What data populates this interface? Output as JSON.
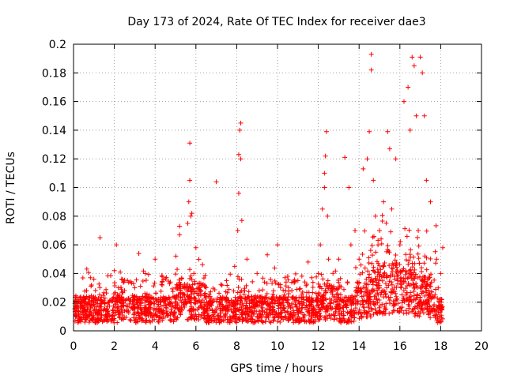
{
  "chart_data": {
    "type": "scatter",
    "title": "Day 173 of 2024, Rate Of TEC Index for receiver dae3",
    "xlabel": "GPS time / hours",
    "ylabel": "ROTI / TECUs",
    "xlim": [
      0,
      20
    ],
    "ylim": [
      0,
      0.2
    ],
    "xticks": [
      "0",
      "2",
      "4",
      "6",
      "8",
      "10",
      "12",
      "14",
      "16",
      "18",
      "20"
    ],
    "yticks": [
      "0",
      "0.02",
      "0.04",
      "0.06",
      "0.08",
      "0.1",
      "0.12",
      "0.14",
      "0.16",
      "0.18",
      "0.2"
    ],
    "grid": true,
    "marker": "plus",
    "color": "#ff0000",
    "series": [
      {
        "x": [
          0.1,
          0.5,
          1.0,
          1.3,
          1.5,
          2.0,
          2.1,
          2.2,
          2.5,
          3.0,
          3.2,
          3.5,
          4.0,
          4.5,
          5.0,
          5.2,
          5.2,
          5.5,
          5.6,
          5.65,
          5.7,
          5.7,
          5.75,
          5.8,
          5.9,
          6.0,
          6.5,
          7.0,
          7.5,
          7.9,
          8.05,
          8.1,
          8.1,
          8.15,
          8.2,
          8.2,
          8.25,
          8.5,
          9.0,
          9.5,
          10.0,
          10.5,
          11.0,
          11.5,
          12.0,
          12.1,
          12.2,
          12.3,
          12.3,
          12.35,
          12.4,
          12.45,
          12.5,
          13.0,
          13.3,
          13.5,
          13.6,
          13.8,
          14.0,
          14.2,
          14.4,
          14.5,
          14.6,
          14.6,
          14.7,
          14.8,
          15.0,
          15.2,
          15.4,
          15.5,
          15.6,
          15.8,
          16.0,
          16.2,
          16.4,
          16.5,
          16.6,
          16.7,
          16.8,
          16.9,
          17.0,
          17.1,
          17.2,
          17.3,
          17.5,
          17.8,
          18.0,
          18.1
        ],
        "y": [
          0.012,
          0.018,
          0.014,
          0.065,
          0.02,
          0.042,
          0.06,
          0.03,
          0.028,
          0.03,
          0.054,
          0.026,
          0.05,
          0.022,
          0.03,
          0.067,
          0.073,
          0.03,
          0.075,
          0.09,
          0.131,
          0.105,
          0.08,
          0.082,
          0.04,
          0.058,
          0.03,
          0.104,
          0.035,
          0.045,
          0.07,
          0.096,
          0.123,
          0.14,
          0.145,
          0.12,
          0.077,
          0.05,
          0.04,
          0.053,
          0.06,
          0.038,
          0.035,
          0.048,
          0.04,
          0.06,
          0.085,
          0.1,
          0.11,
          0.122,
          0.139,
          0.08,
          0.05,
          0.05,
          0.121,
          0.1,
          0.06,
          0.07,
          0.05,
          0.113,
          0.12,
          0.139,
          0.182,
          0.193,
          0.105,
          0.08,
          0.07,
          0.09,
          0.139,
          0.127,
          0.085,
          0.12,
          0.06,
          0.16,
          0.17,
          0.14,
          0.191,
          0.185,
          0.15,
          0.07,
          0.191,
          0.18,
          0.15,
          0.105,
          0.09,
          0.05,
          0.04,
          0.058
        ]
      }
    ]
  }
}
